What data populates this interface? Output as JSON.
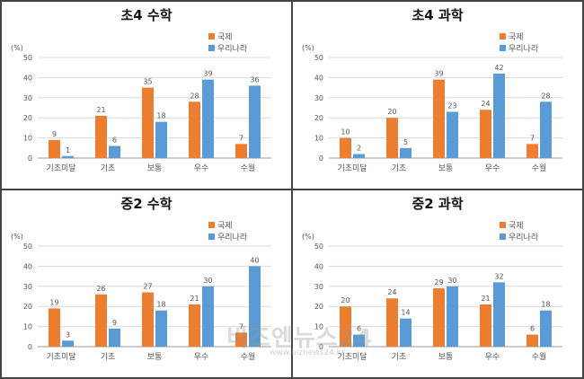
{
  "colors": {
    "international": "#ED7D31",
    "korea": "#5B9BD5",
    "axis": "#999999",
    "grid": "#d9d9d9",
    "text": "#555555"
  },
  "watermark": {
    "main": "비즈엔뉴스24",
    "sub": "www.biznews24.kr"
  },
  "chart_data": [
    {
      "type": "bar",
      "title": "초4 수학",
      "ylabel": "(%)",
      "ylim": [
        0,
        50
      ],
      "yticks": [
        "0",
        "10",
        "20",
        "30",
        "40",
        "50"
      ],
      "legend_position": "top-right",
      "grid": true,
      "categories": [
        "기초미달",
        "기초",
        "보통",
        "우수",
        "수월"
      ],
      "series": [
        {
          "name": "국제",
          "values": [
            9,
            21,
            35,
            28,
            7
          ]
        },
        {
          "name": "우리나라",
          "values": [
            1,
            6,
            18,
            39,
            36
          ]
        }
      ]
    },
    {
      "type": "bar",
      "title": "초4 과학",
      "ylabel": "(%)",
      "ylim": [
        0,
        50
      ],
      "yticks": [
        "0",
        "10",
        "20",
        "30",
        "40",
        "50"
      ],
      "legend_position": "top-right",
      "grid": true,
      "categories": [
        "기초미달",
        "기초",
        "보통",
        "우수",
        "수월"
      ],
      "series": [
        {
          "name": "국제",
          "values": [
            10,
            20,
            39,
            24,
            7
          ]
        },
        {
          "name": "우리나라",
          "values": [
            2,
            5,
            23,
            42,
            28
          ]
        }
      ]
    },
    {
      "type": "bar",
      "title": "중2 수학",
      "ylabel": "(%)",
      "ylim": [
        0,
        50
      ],
      "yticks": [
        "0",
        "10",
        "20",
        "30",
        "40",
        "50"
      ],
      "legend_position": "top-right",
      "grid": true,
      "categories": [
        "기초미달",
        "기초",
        "보통",
        "우수",
        "수월"
      ],
      "series": [
        {
          "name": "국제",
          "values": [
            19,
            26,
            27,
            21,
            7
          ]
        },
        {
          "name": "우리나라",
          "values": [
            3,
            9,
            18,
            30,
            40
          ]
        }
      ]
    },
    {
      "type": "bar",
      "title": "중2 과학",
      "ylabel": "(%)",
      "ylim": [
        0,
        50
      ],
      "yticks": [
        "0",
        "10",
        "20",
        "30",
        "40",
        "50"
      ],
      "legend_position": "top-right",
      "grid": true,
      "categories": [
        "기초미달",
        "기초",
        "보통",
        "우수",
        "수월"
      ],
      "series": [
        {
          "name": "국제",
          "values": [
            20,
            24,
            29,
            21,
            6
          ]
        },
        {
          "name": "우리나라",
          "values": [
            6,
            14,
            30,
            32,
            18
          ]
        }
      ]
    }
  ]
}
